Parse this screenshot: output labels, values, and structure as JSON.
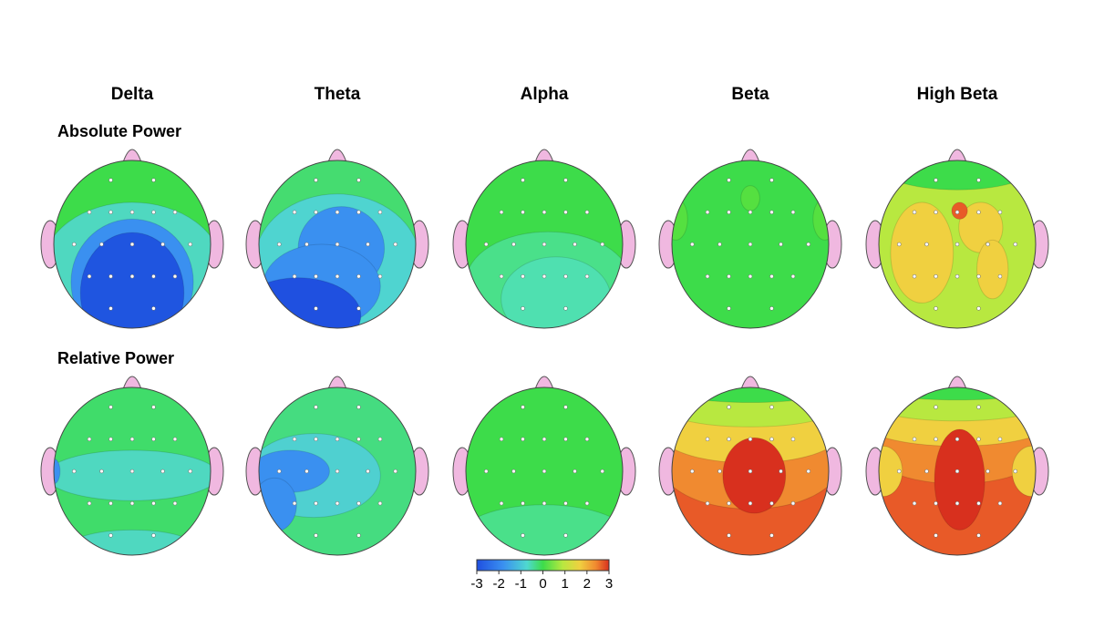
{
  "columns": [
    "Delta",
    "Theta",
    "Alpha",
    "Beta",
    "High Beta"
  ],
  "rows": [
    "Absolute Power",
    "Relative Power"
  ],
  "colorbar": {
    "lim": [
      -3,
      3
    ],
    "ticks": [
      -3,
      -2,
      -1,
      0,
      1,
      2,
      3
    ]
  }
}
